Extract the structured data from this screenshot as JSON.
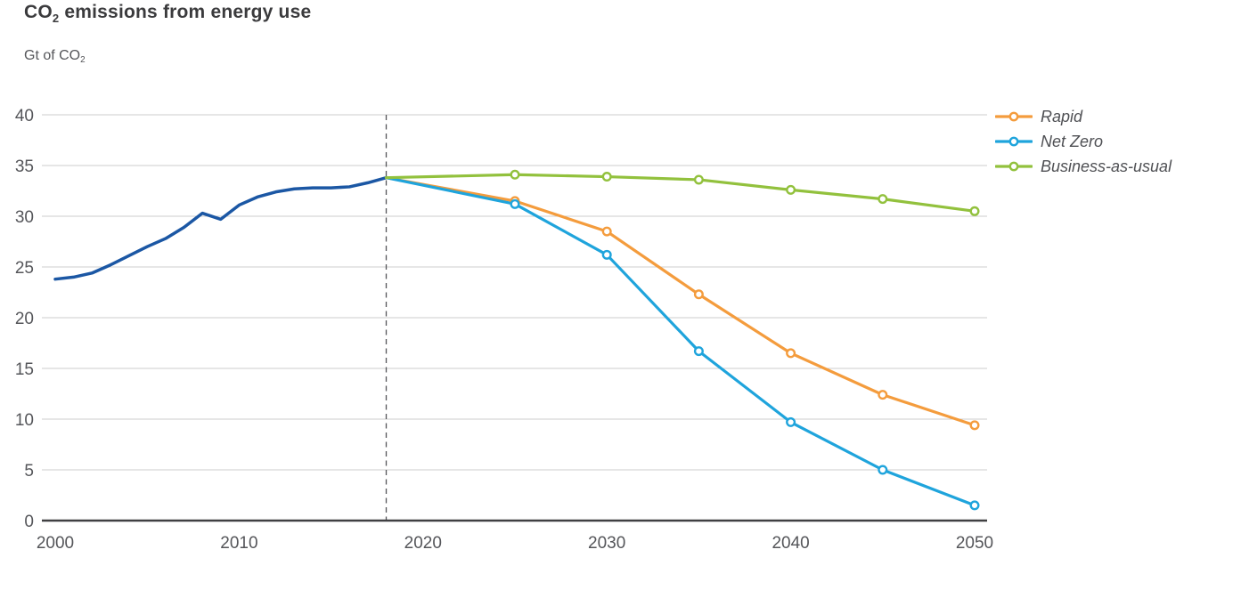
{
  "header": {
    "title_prefix": "CO",
    "title_sub": "2",
    "title_suffix": " emissions from energy use",
    "unit_prefix": "Gt of CO",
    "unit_sub": "2"
  },
  "colors": {
    "history": "#1b57a4",
    "rapid": "#f49c3d",
    "net_zero": "#1fa4dc",
    "bau": "#92c13d",
    "grid": "#cccccc",
    "axis": "#404042",
    "divider": "#55565a",
    "tick_label": "#55565a",
    "title_text": "#3b3b3d"
  },
  "chart_data": {
    "type": "line",
    "title": "CO2 emissions from energy use",
    "ylabel": "Gt of CO2",
    "xlabel": "",
    "xlim": [
      2000,
      2050
    ],
    "ylim": [
      0,
      40
    ],
    "x_ticks": [
      2000,
      2010,
      2020,
      2030,
      2040,
      2050
    ],
    "y_ticks": [
      0,
      5,
      10,
      15,
      20,
      25,
      30,
      35,
      40
    ],
    "grid": "horizontal",
    "legend_position": "top-right",
    "divider_year": 2018,
    "history": {
      "color_key": "history",
      "x": [
        2000,
        2001,
        2002,
        2003,
        2004,
        2005,
        2006,
        2007,
        2008,
        2009,
        2010,
        2011,
        2012,
        2013,
        2014,
        2015,
        2016,
        2017,
        2018
      ],
      "values": [
        23.8,
        24.0,
        24.4,
        25.2,
        26.1,
        27.0,
        27.8,
        28.9,
        30.3,
        29.7,
        31.1,
        31.9,
        32.4,
        32.7,
        32.8,
        32.8,
        32.9,
        33.3,
        33.8
      ]
    },
    "series": [
      {
        "name": "Rapid",
        "color_key": "rapid",
        "x": [
          2018,
          2025,
          2030,
          2035,
          2040,
          2045,
          2050
        ],
        "values": [
          33.8,
          31.5,
          28.5,
          22.3,
          16.5,
          12.4,
          9.4
        ]
      },
      {
        "name": "Net Zero",
        "color_key": "net_zero",
        "x": [
          2018,
          2025,
          2030,
          2035,
          2040,
          2045,
          2050
        ],
        "values": [
          33.8,
          31.2,
          26.2,
          16.7,
          9.7,
          5.0,
          1.5
        ]
      },
      {
        "name": "Business-as-usual",
        "color_key": "bau",
        "x": [
          2018,
          2025,
          2030,
          2035,
          2040,
          2045,
          2050
        ],
        "values": [
          33.8,
          34.1,
          33.9,
          33.6,
          32.6,
          31.7,
          30.5
        ]
      }
    ]
  }
}
